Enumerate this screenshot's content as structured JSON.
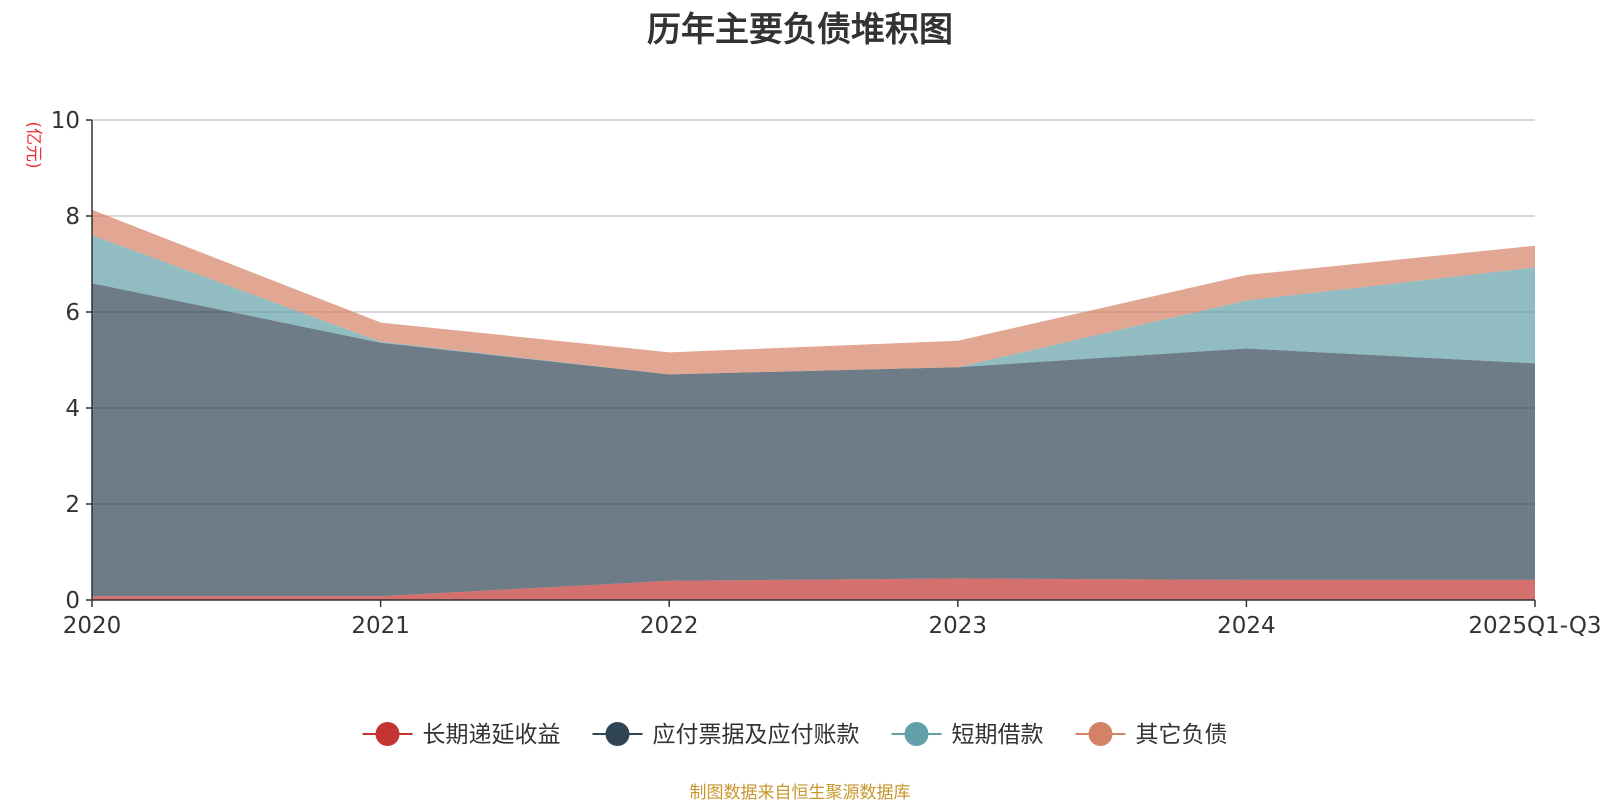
{
  "chart_data": {
    "type": "area",
    "stacked": true,
    "title": "历年主要负债堆积图",
    "unit_label": "(亿元)",
    "categories": [
      "2020",
      "2021",
      "2022",
      "2023",
      "2024",
      "2025Q1-Q3"
    ],
    "ylim": [
      0,
      10
    ],
    "yticks": [
      0,
      2,
      4,
      6,
      8,
      10
    ],
    "grid": true,
    "legend_position": "bottom",
    "series": [
      {
        "name": "长期递延收益",
        "values": [
          0.08,
          0.08,
          0.4,
          0.45,
          0.42,
          0.42
        ],
        "color": "#c23531",
        "fill_opacity": 0.7
      },
      {
        "name": "应付票据及应付账款",
        "values": [
          6.52,
          5.28,
          4.3,
          4.4,
          4.82,
          4.51
        ],
        "color": "#2f4554",
        "fill_opacity": 0.7
      },
      {
        "name": "短期借款",
        "values": [
          1.0,
          0.02,
          0.0,
          0.0,
          1.0,
          2.0
        ],
        "color": "#61a0a8",
        "fill_opacity": 0.7
      },
      {
        "name": "其它负债",
        "values": [
          0.53,
          0.4,
          0.46,
          0.55,
          0.53,
          0.45
        ],
        "color": "#d48265",
        "fill_opacity": 0.7
      }
    ],
    "source_note": "制图数据来自恒生聚源数据库"
  }
}
